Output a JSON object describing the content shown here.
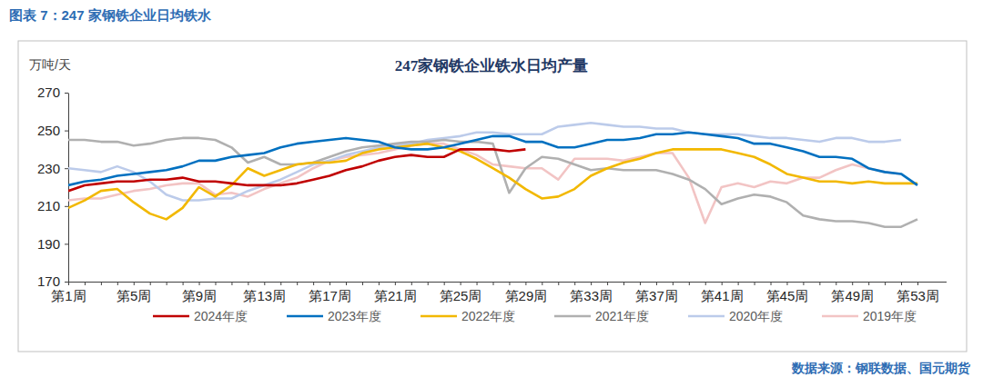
{
  "figure_title": "图表 7：247 家钢铁企业日均铁水",
  "source": "数据来源：钢联数据、国元期货",
  "chart_data": {
    "type": "line",
    "title": "247家钢铁企业铁水日均产量",
    "y_label": "万吨/天",
    "categories": [
      "第1周",
      null,
      null,
      null,
      "第5周",
      null,
      null,
      null,
      "第9周",
      null,
      null,
      null,
      "第13周",
      null,
      null,
      null,
      "第17周",
      null,
      null,
      null,
      "第21周",
      null,
      null,
      null,
      "第25周",
      null,
      null,
      null,
      "第29周",
      null,
      null,
      null,
      "第33周",
      null,
      null,
      null,
      "第37周",
      null,
      null,
      null,
      "第41周",
      null,
      null,
      null,
      "第45周",
      null,
      null,
      null,
      "第49周",
      null,
      null,
      null,
      "第53周"
    ],
    "ylim": [
      170,
      270
    ],
    "yticks": [
      170,
      190,
      210,
      230,
      250,
      270
    ],
    "grid": false,
    "legend": "bottom",
    "series": [
      {
        "name": "2024年度",
        "color": "#c00000",
        "values": [
          218,
          221,
          222,
          223,
          223,
          224,
          224,
          225,
          223,
          223,
          222,
          221,
          221,
          221,
          222,
          224,
          226,
          229,
          231,
          234,
          236,
          237,
          236,
          236,
          240,
          240,
          240,
          239,
          240,
          null,
          null,
          null,
          null,
          null,
          null,
          null,
          null,
          null,
          null,
          null,
          null,
          null,
          null,
          null,
          null,
          null,
          null,
          null,
          null,
          null,
          null,
          null,
          null
        ]
      },
      {
        "name": "2023年度",
        "color": "#0070c0",
        "values": [
          221,
          223,
          224,
          226,
          227,
          228,
          229,
          231,
          234,
          234,
          236,
          237,
          238,
          241,
          243,
          244,
          245,
          246,
          245,
          244,
          241,
          240,
          240,
          241,
          243,
          245,
          247,
          247,
          244,
          244,
          241,
          241,
          243,
          245,
          245,
          246,
          248,
          248,
          249,
          248,
          247,
          246,
          243,
          243,
          241,
          239,
          236,
          236,
          235,
          230,
          228,
          227,
          221
        ]
      },
      {
        "name": "2022年度",
        "color": "#f2b800",
        "values": [
          209,
          213,
          218,
          219,
          212,
          206,
          203,
          209,
          220,
          215,
          221,
          230,
          226,
          229,
          232,
          233,
          233,
          234,
          238,
          240,
          241,
          242,
          243,
          241,
          239,
          235,
          230,
          225,
          219,
          214,
          215,
          219,
          226,
          230,
          233,
          235,
          238,
          240,
          240,
          240,
          240,
          238,
          236,
          232,
          227,
          225,
          223,
          223,
          222,
          223,
          222,
          222,
          222
        ]
      },
      {
        "name": "2021年度",
        "color": "#b0b0b0",
        "values": [
          245,
          245,
          244,
          244,
          242,
          243,
          245,
          246,
          246,
          245,
          241,
          233,
          236,
          232,
          232,
          233,
          236,
          239,
          241,
          242,
          243,
          244,
          244,
          245,
          244,
          244,
          243,
          217,
          230,
          236,
          235,
          232,
          229,
          230,
          229,
          229,
          229,
          227,
          224,
          219,
          211,
          214,
          216,
          215,
          212,
          205,
          203,
          202,
          202,
          201,
          199,
          199,
          203
        ]
      },
      {
        "name": "2020年度",
        "color": "#bccbea",
        "values": [
          230,
          229,
          228,
          231,
          228,
          223,
          216,
          213,
          213,
          214,
          214,
          218,
          221,
          224,
          228,
          232,
          234,
          237,
          239,
          241,
          242,
          243,
          245,
          246,
          247,
          249,
          249,
          248,
          248,
          248,
          252,
          253,
          254,
          253,
          252,
          252,
          251,
          251,
          249,
          248,
          248,
          248,
          247,
          246,
          246,
          245,
          244,
          246,
          246,
          244,
          244,
          245,
          null
        ]
      },
      {
        "name": "2019年度",
        "color": "#f2c4c4",
        "values": [
          213,
          214,
          214,
          216,
          218,
          219,
          221,
          222,
          222,
          216,
          217,
          215,
          219,
          222,
          225,
          230,
          234,
          236,
          237,
          238,
          240,
          242,
          243,
          243,
          240,
          237,
          232,
          231,
          230,
          230,
          224,
          235,
          235,
          235,
          234,
          236,
          238,
          238,
          225,
          201,
          220,
          222,
          220,
          223,
          222,
          225,
          225,
          229,
          232,
          230,
          228,
          227,
          null
        ]
      }
    ]
  }
}
